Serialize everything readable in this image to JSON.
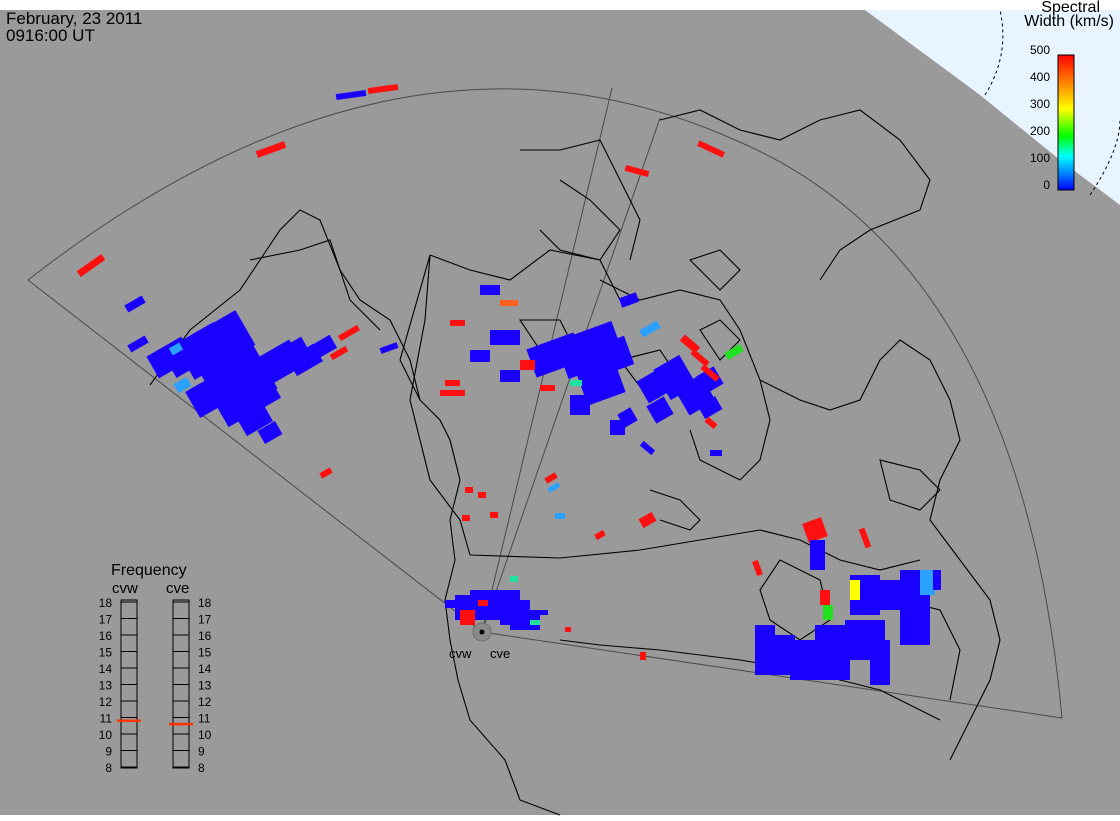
{
  "header": {
    "date": "February, 23 2011",
    "time": "0916:00 UT"
  },
  "colorbar": {
    "title_line1": "Spectral",
    "title_line2": "Width (km/s)",
    "ticks": [
      "500",
      "400",
      "300",
      "200",
      "100",
      "0"
    ],
    "scale_colors": [
      "#ff0000",
      "#ff8000",
      "#ffff00",
      "#00ff00",
      "#00ffff",
      "#0080ff",
      "#0000ff"
    ]
  },
  "frequency_panel": {
    "title": "Frequency",
    "radars": [
      {
        "code": "cvw",
        "selected_mhz": 10.8
      },
      {
        "code": "cve",
        "selected_mhz": 10.6
      }
    ],
    "scale": [
      "18",
      "17",
      "16",
      "15",
      "14",
      "13",
      "12",
      "11",
      "10",
      "9",
      "8"
    ]
  },
  "stations": [
    {
      "code": "cvw"
    },
    {
      "code": "cve"
    }
  ],
  "colors": {
    "background": "#9a9a9a",
    "polar": "#e8f4ff",
    "coast": "#000000",
    "fov": "#505050",
    "echo_low": "#1a00ff",
    "echo_high": "#ff1010",
    "frequency_marker": "#ff3300"
  }
}
